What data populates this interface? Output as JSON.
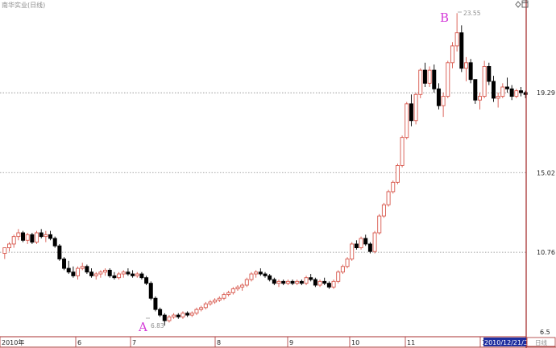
{
  "chart_data": {
    "type": "candlestick",
    "title": "南华实业(日线)",
    "y_ticks": [
      19.29,
      15.02,
      10.76,
      6.5
    ],
    "ylim": [
      6.5,
      23.65
    ],
    "x_tick_labels": [
      "2010年",
      "6",
      "7",
      "8",
      "9",
      "10",
      "11",
      "12"
    ],
    "annotations": [
      {
        "label": "A",
        "price_label": "6.83"
      },
      {
        "label": "B",
        "price_label": "23.55"
      }
    ],
    "cursor_date": "2010/12/21/二",
    "period_tab": "日线",
    "colors": {
      "up": "#d8574c",
      "down": "#000000",
      "axis": "#a83232",
      "grid": "#888888",
      "annotation": "#d43ad8"
    },
    "candles": [
      [
        10.7,
        11.0,
        10.4,
        11.0
      ],
      [
        11.0,
        11.3,
        10.8,
        11.2
      ],
      [
        11.2,
        11.7,
        11.0,
        11.6
      ],
      [
        11.6,
        12.0,
        11.4,
        11.8
      ],
      [
        11.8,
        11.9,
        11.3,
        11.4
      ],
      [
        11.4,
        11.8,
        11.2,
        11.7
      ],
      [
        11.7,
        11.8,
        11.2,
        11.3
      ],
      [
        11.3,
        11.9,
        11.2,
        11.8
      ],
      [
        11.8,
        12.0,
        11.5,
        11.6
      ],
      [
        11.6,
        11.9,
        11.3,
        11.7
      ],
      [
        11.7,
        11.9,
        11.4,
        11.5
      ],
      [
        11.5,
        11.6,
        11.0,
        11.1
      ],
      [
        11.1,
        11.2,
        10.3,
        10.4
      ],
      [
        10.4,
        10.5,
        9.8,
        9.9
      ],
      [
        9.9,
        10.3,
        9.6,
        9.7
      ],
      [
        9.7,
        10.0,
        9.4,
        9.5
      ],
      [
        9.5,
        10.0,
        9.3,
        9.9
      ],
      [
        9.9,
        10.2,
        9.8,
        10.0
      ],
      [
        10.0,
        10.1,
        9.6,
        9.7
      ],
      [
        9.7,
        9.9,
        9.4,
        9.5
      ],
      [
        9.5,
        9.7,
        9.3,
        9.6
      ],
      [
        9.6,
        9.8,
        9.4,
        9.7
      ],
      [
        9.7,
        9.9,
        9.5,
        9.8
      ],
      [
        9.8,
        9.9,
        9.4,
        9.5
      ],
      [
        9.5,
        9.7,
        9.3,
        9.4
      ],
      [
        9.4,
        9.7,
        9.3,
        9.6
      ],
      [
        9.6,
        9.8,
        9.4,
        9.7
      ],
      [
        9.7,
        9.9,
        9.5,
        9.6
      ],
      [
        9.6,
        9.8,
        9.4,
        9.5
      ],
      [
        9.5,
        9.7,
        9.4,
        9.6
      ],
      [
        9.6,
        9.7,
        9.3,
        9.4
      ],
      [
        9.4,
        9.5,
        9.0,
        9.1
      ],
      [
        9.1,
        9.2,
        8.2,
        8.3
      ],
      [
        8.3,
        8.4,
        7.6,
        7.7
      ],
      [
        7.7,
        7.8,
        7.3,
        7.4
      ],
      [
        7.4,
        7.5,
        6.83,
        7.1
      ],
      [
        7.1,
        7.4,
        7.0,
        7.3
      ],
      [
        7.3,
        7.5,
        7.2,
        7.4
      ],
      [
        7.4,
        7.5,
        7.2,
        7.3
      ],
      [
        7.3,
        7.6,
        7.2,
        7.5
      ],
      [
        7.5,
        7.6,
        7.3,
        7.4
      ],
      [
        7.4,
        7.6,
        7.3,
        7.5
      ],
      [
        7.5,
        7.8,
        7.4,
        7.7
      ],
      [
        7.7,
        7.9,
        7.6,
        7.8
      ],
      [
        7.8,
        8.1,
        7.7,
        8.0
      ],
      [
        8.0,
        8.2,
        7.9,
        8.1
      ],
      [
        8.1,
        8.3,
        8.0,
        8.2
      ],
      [
        8.2,
        8.4,
        8.1,
        8.3
      ],
      [
        8.3,
        8.6,
        8.2,
        8.5
      ],
      [
        8.5,
        8.7,
        8.4,
        8.6
      ],
      [
        8.6,
        8.9,
        8.5,
        8.8
      ],
      [
        8.8,
        9.0,
        8.7,
        8.9
      ],
      [
        8.9,
        9.1,
        8.7,
        9.0
      ],
      [
        9.0,
        9.4,
        8.9,
        9.3
      ],
      [
        9.3,
        9.7,
        9.2,
        9.6
      ],
      [
        9.6,
        9.8,
        9.4,
        9.7
      ],
      [
        9.7,
        9.9,
        9.5,
        9.6
      ],
      [
        9.6,
        9.7,
        9.4,
        9.5
      ],
      [
        9.5,
        9.6,
        9.2,
        9.3
      ],
      [
        9.3,
        9.4,
        9.0,
        9.1
      ],
      [
        9.1,
        9.3,
        8.9,
        9.2
      ],
      [
        9.2,
        9.3,
        9.0,
        9.1
      ],
      [
        9.1,
        9.3,
        9.0,
        9.2
      ],
      [
        9.2,
        9.3,
        9.0,
        9.1
      ],
      [
        9.1,
        9.3,
        9.0,
        9.2
      ],
      [
        9.2,
        9.3,
        9.0,
        9.1
      ],
      [
        9.1,
        9.5,
        9.0,
        9.4
      ],
      [
        9.4,
        9.6,
        9.2,
        9.3
      ],
      [
        9.3,
        9.4,
        8.9,
        9.0
      ],
      [
        9.0,
        9.3,
        8.9,
        9.2
      ],
      [
        9.2,
        9.4,
        9.0,
        9.1
      ],
      [
        9.1,
        9.2,
        8.8,
        8.9
      ],
      [
        8.9,
        9.3,
        8.8,
        9.2
      ],
      [
        9.2,
        9.8,
        9.1,
        9.7
      ],
      [
        9.7,
        10.1,
        9.6,
        10.0
      ],
      [
        10.0,
        10.5,
        9.9,
        10.4
      ],
      [
        10.4,
        11.3,
        10.3,
        11.2
      ],
      [
        11.2,
        11.4,
        10.9,
        11.0
      ],
      [
        11.0,
        11.6,
        10.9,
        11.5
      ],
      [
        11.5,
        11.7,
        11.1,
        11.2
      ],
      [
        11.2,
        11.3,
        10.7,
        10.8
      ],
      [
        10.8,
        11.9,
        10.7,
        11.8
      ],
      [
        11.8,
        12.8,
        11.7,
        12.7
      ],
      [
        12.7,
        13.4,
        12.6,
        13.3
      ],
      [
        13.3,
        14.1,
        13.2,
        14.0
      ],
      [
        14.0,
        14.6,
        13.9,
        14.5
      ],
      [
        14.5,
        15.5,
        14.4,
        15.4
      ],
      [
        15.4,
        17.0,
        15.3,
        16.9
      ],
      [
        16.9,
        18.8,
        16.8,
        18.7
      ],
      [
        18.7,
        19.2,
        17.5,
        17.8
      ],
      [
        17.8,
        19.3,
        17.6,
        19.2
      ],
      [
        19.2,
        20.6,
        19.0,
        20.5
      ],
      [
        20.5,
        20.9,
        19.6,
        19.8
      ],
      [
        19.8,
        20.7,
        19.6,
        20.5
      ],
      [
        20.5,
        20.8,
        19.3,
        19.5
      ],
      [
        19.5,
        19.8,
        18.4,
        18.6
      ],
      [
        18.6,
        19.3,
        18.0,
        19.1
      ],
      [
        19.1,
        21.0,
        19.0,
        20.9
      ],
      [
        20.9,
        22.0,
        20.6,
        21.8
      ],
      [
        21.8,
        23.55,
        21.5,
        22.5
      ],
      [
        22.5,
        22.9,
        20.4,
        20.6
      ],
      [
        20.6,
        21.2,
        19.9,
        20.9
      ],
      [
        20.9,
        21.1,
        19.8,
        20.0
      ],
      [
        20.0,
        19.9,
        18.7,
        18.9
      ],
      [
        18.9,
        19.3,
        18.4,
        19.1
      ],
      [
        19.1,
        21.0,
        19.0,
        20.7
      ],
      [
        20.7,
        20.9,
        19.7,
        19.9
      ],
      [
        19.9,
        20.2,
        18.8,
        19.0
      ],
      [
        19.0,
        19.3,
        18.5,
        19.1
      ],
      [
        19.1,
        19.8,
        19.0,
        19.6
      ],
      [
        19.6,
        20.1,
        19.3,
        19.5
      ],
      [
        19.5,
        19.7,
        18.9,
        19.1
      ],
      [
        19.1,
        19.5,
        19.0,
        19.4
      ],
      [
        19.4,
        19.6,
        19.1,
        19.3
      ],
      [
        19.3,
        19.4,
        19.0,
        19.2
      ]
    ]
  }
}
